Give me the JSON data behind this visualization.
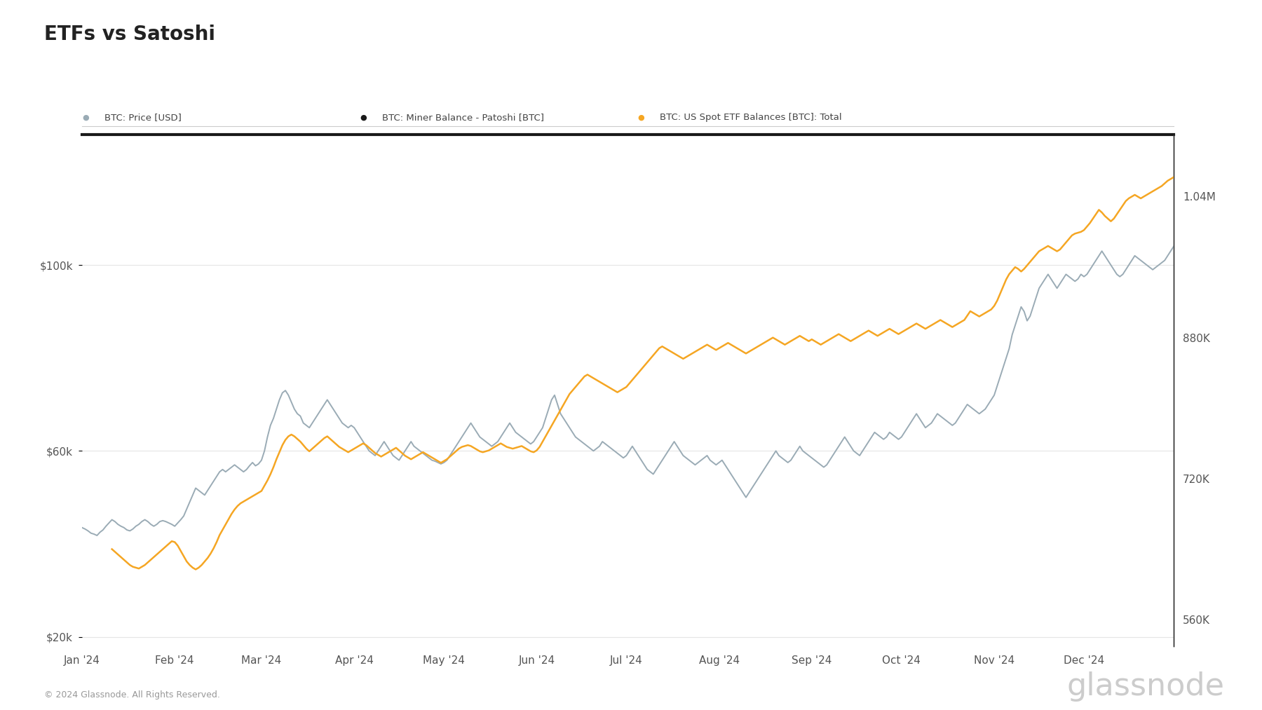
{
  "title": "ETFs vs Satoshi",
  "background_color": "#ffffff",
  "legend_items": [
    {
      "label": "BTC: Price [USD]",
      "color": "#9aabb5",
      "marker": "o",
      "ms": 6
    },
    {
      "label": "BTC: Miner Balance - Patoshi [BTC]",
      "color": "#1a1a1a",
      "marker": "o",
      "ms": 6
    },
    {
      "label": "BTC: US Spot ETF Balances [BTC]: Total",
      "color": "#f5a623",
      "marker": "o",
      "ms": 6
    }
  ],
  "left_yticks": [
    20000,
    60000,
    100000
  ],
  "left_yticklabels": [
    "$20k",
    "$60k",
    "$100k"
  ],
  "left_ylim": [
    18000,
    128000
  ],
  "right_yticks": [
    560000,
    720000,
    880000,
    1040000
  ],
  "right_yticklabels": [
    "560K",
    "720K",
    "880K",
    "1.04M"
  ],
  "right_ylim": [
    530000,
    1110000
  ],
  "xticklabels": [
    "Jan '24",
    "Feb '24",
    "Mar '24",
    "Apr '24",
    "May '24",
    "Jun '24",
    "Jul '24",
    "Aug '24",
    "Sep '24",
    "Oct '24",
    "Nov '24",
    "Dec '24"
  ],
  "grid_color": "#e5e5e5",
  "footer_text": "© 2024 Glassnode. All Rights Reserved.",
  "watermark": "glassnode",
  "btc_price_color": "#9aabb5",
  "etf_color": "#f5a623",
  "miner_color": "#1a1a1a",
  "btc_lw": 1.4,
  "etf_lw": 1.8,
  "miner_lw": 3.0
}
